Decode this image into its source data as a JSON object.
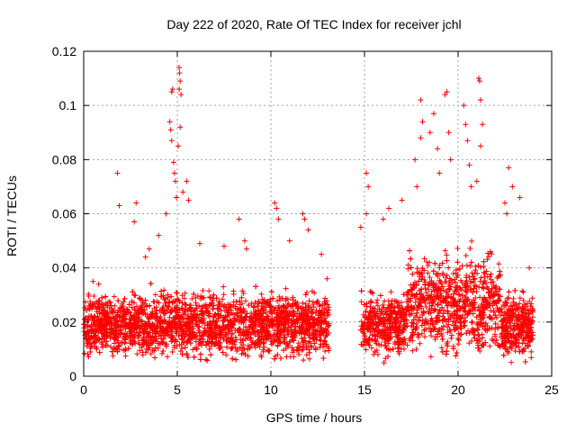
{
  "chart_data": {
    "type": "scatter",
    "title": "Day 222 of 2020, Rate Of TEC Index for receiver jchl",
    "xlabel": "GPS time / hours",
    "ylabel": "ROTI / TECUs",
    "xlim": [
      0,
      25
    ],
    "ylim": [
      0,
      0.12
    ],
    "xticks": [
      0,
      5,
      10,
      15,
      20,
      25
    ],
    "yticks": [
      0,
      0.02,
      0.04,
      0.06,
      0.08,
      0.1,
      0.12
    ],
    "xtick_labels": [
      "0",
      "5",
      "10",
      "15",
      "20",
      "25"
    ],
    "ytick_labels": [
      "0",
      "0.02",
      "0.04",
      "0.06",
      "0.08",
      "0.1",
      "0.12"
    ],
    "grid": true,
    "marker": "+",
    "color": "#ff0000",
    "data_gap_hours": [
      13.1,
      14.8
    ],
    "series": [
      {
        "name": "ROTI",
        "points": [
          [
            0.5,
            0.035
          ],
          [
            1.8,
            0.075
          ],
          [
            1.9,
            0.063
          ],
          [
            2.8,
            0.064
          ],
          [
            2.7,
            0.057
          ],
          [
            3.3,
            0.044
          ],
          [
            3.5,
            0.047
          ],
          [
            4.0,
            0.052
          ],
          [
            4.4,
            0.06
          ],
          [
            4.7,
            0.105
          ],
          [
            4.75,
            0.106
          ],
          [
            4.6,
            0.094
          ],
          [
            4.65,
            0.091
          ],
          [
            4.7,
            0.087
          ],
          [
            4.8,
            0.079
          ],
          [
            4.85,
            0.075
          ],
          [
            4.9,
            0.072
          ],
          [
            4.95,
            0.066
          ],
          [
            5.1,
            0.114
          ],
          [
            5.12,
            0.112
          ],
          [
            5.15,
            0.109
          ],
          [
            5.1,
            0.106
          ],
          [
            5.2,
            0.104
          ],
          [
            5.15,
            0.092
          ],
          [
            5.05,
            0.085
          ],
          [
            5.3,
            0.068
          ],
          [
            5.5,
            0.072
          ],
          [
            5.6,
            0.065
          ],
          [
            6.2,
            0.049
          ],
          [
            7.5,
            0.048
          ],
          [
            8.3,
            0.058
          ],
          [
            8.6,
            0.05
          ],
          [
            8.7,
            0.047
          ],
          [
            10.2,
            0.064
          ],
          [
            10.3,
            0.062
          ],
          [
            10.4,
            0.058
          ],
          [
            11.0,
            0.05
          ],
          [
            11.7,
            0.06
          ],
          [
            11.8,
            0.058
          ],
          [
            12.0,
            0.054
          ],
          [
            12.7,
            0.045
          ],
          [
            13.0,
            0.036
          ],
          [
            14.8,
            0.055
          ],
          [
            15.1,
            0.075
          ],
          [
            15.2,
            0.07
          ],
          [
            15.1,
            0.06
          ],
          [
            16.0,
            0.058
          ],
          [
            16.3,
            0.062
          ],
          [
            17.0,
            0.065
          ],
          [
            17.7,
            0.08
          ],
          [
            17.8,
            0.07
          ],
          [
            18.0,
            0.102
          ],
          [
            18.1,
            0.094
          ],
          [
            18.0,
            0.088
          ],
          [
            18.5,
            0.09
          ],
          [
            18.7,
            0.097
          ],
          [
            18.9,
            0.084
          ],
          [
            19.0,
            0.075
          ],
          [
            19.3,
            0.104
          ],
          [
            19.4,
            0.105
          ],
          [
            19.5,
            0.09
          ],
          [
            19.6,
            0.08
          ],
          [
            20.3,
            0.1
          ],
          [
            20.4,
            0.093
          ],
          [
            20.5,
            0.087
          ],
          [
            20.6,
            0.078
          ],
          [
            20.7,
            0.07
          ],
          [
            21.1,
            0.11
          ],
          [
            21.15,
            0.109
          ],
          [
            21.2,
            0.102
          ],
          [
            21.3,
            0.093
          ],
          [
            21.2,
            0.085
          ],
          [
            21.0,
            0.072
          ],
          [
            22.5,
            0.064
          ],
          [
            22.6,
            0.06
          ],
          [
            22.7,
            0.077
          ],
          [
            22.9,
            0.07
          ],
          [
            23.3,
            0.066
          ],
          [
            23.8,
            0.04
          ]
        ]
      }
    ]
  }
}
